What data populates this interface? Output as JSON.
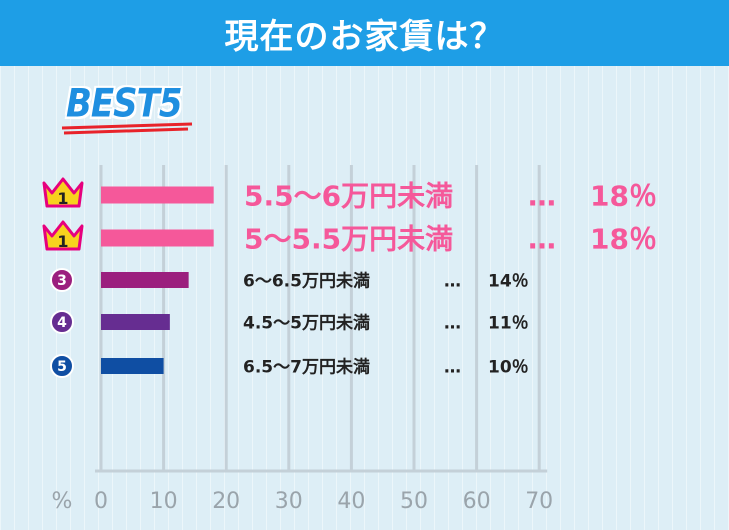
{
  "header": {
    "title": "現在のお家賃は？"
  },
  "badge": {
    "text": "BEST5"
  },
  "chart_data": {
    "type": "bar",
    "orientation": "horizontal",
    "xlabel": "%",
    "xlim": [
      0,
      70
    ],
    "ticks": [
      0,
      10,
      20,
      30,
      40,
      50,
      60,
      70
    ],
    "grid": true,
    "categories": [
      "5.5～6万円未満",
      "5～5.5万円未満",
      "6～6.5万円未満",
      "4.5～5万円未満",
      "6.5～7万円未満"
    ],
    "values": [
      18,
      18,
      14,
      11,
      10
    ],
    "rank_labels": [
      "1",
      "1",
      "3",
      "4",
      "5"
    ],
    "value_labels": [
      "18％",
      "18％",
      "14％",
      "11％",
      "10％"
    ],
    "separator": "…",
    "colors": [
      "#f5589a",
      "#f5589a",
      "#9b1f7e",
      "#662d91",
      "#0f4ea3"
    ],
    "label_colors": [
      "#f5589a",
      "#f5589a",
      "#222222",
      "#222222",
      "#222222"
    ]
  }
}
